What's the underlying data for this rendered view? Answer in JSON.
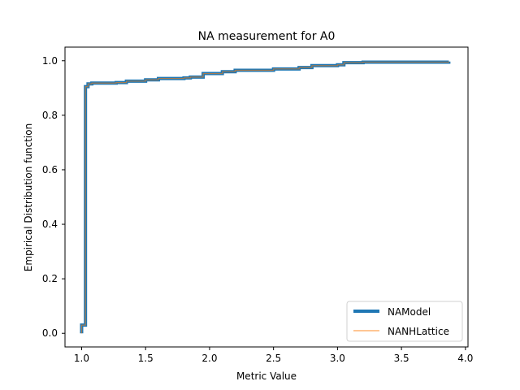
{
  "chart_data": {
    "type": "line",
    "title": "NA measurement for A0",
    "xlabel": "Metric Value",
    "ylabel": "Empirical Distribution function",
    "xlim": [
      0.87,
      4.02
    ],
    "ylim": [
      -0.05,
      1.05
    ],
    "xticks": [
      1.0,
      1.5,
      2.0,
      2.5,
      3.0,
      3.5,
      4.0
    ],
    "xtick_labels": [
      "1.0",
      "1.5",
      "2.0",
      "2.5",
      "3.0",
      "3.5",
      "4.0"
    ],
    "yticks": [
      0.0,
      0.2,
      0.4,
      0.6,
      0.8,
      1.0
    ],
    "ytick_labels": [
      "0.0",
      "0.2",
      "0.4",
      "0.6",
      "0.8",
      "1.0"
    ],
    "grid": false,
    "legend_position": "lower-right",
    "series": [
      {
        "name": "NAModel",
        "color": "#1f77b4",
        "style": "thick",
        "x": [
          1.0,
          1.0,
          1.03,
          1.03,
          1.05,
          1.05,
          1.08,
          1.27,
          1.35,
          1.5,
          1.6,
          1.8,
          1.85,
          1.95,
          2.1,
          2.2,
          2.5,
          2.7,
          2.8,
          3.0,
          3.05,
          3.2,
          3.87
        ],
        "y": [
          0.0,
          0.03,
          0.035,
          0.905,
          0.91,
          0.915,
          0.918,
          0.92,
          0.925,
          0.93,
          0.935,
          0.937,
          0.94,
          0.953,
          0.96,
          0.965,
          0.97,
          0.975,
          0.982,
          0.985,
          0.993,
          0.995,
          0.997
        ]
      },
      {
        "name": "NANHLattice",
        "color": "#ff7f0e",
        "style": "thin",
        "x": [
          1.0,
          1.0,
          1.03,
          1.03,
          1.05,
          1.05,
          1.08,
          1.27,
          1.35,
          1.5,
          1.6,
          1.8,
          1.85,
          1.95,
          2.1,
          2.2,
          2.5,
          2.7,
          2.8,
          3.0,
          3.05,
          3.2,
          3.87
        ],
        "y": [
          0.0,
          0.03,
          0.035,
          0.905,
          0.91,
          0.915,
          0.918,
          0.92,
          0.925,
          0.93,
          0.935,
          0.937,
          0.94,
          0.953,
          0.96,
          0.965,
          0.97,
          0.975,
          0.982,
          0.985,
          0.993,
          0.995,
          0.997
        ]
      }
    ]
  }
}
